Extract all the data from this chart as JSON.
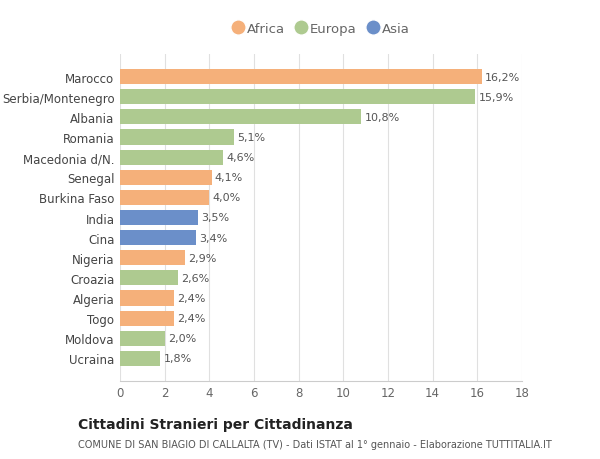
{
  "categories": [
    "Ucraina",
    "Moldova",
    "Togo",
    "Algeria",
    "Croazia",
    "Nigeria",
    "Cina",
    "India",
    "Burkina Faso",
    "Senegal",
    "Macedonia d/N.",
    "Romania",
    "Albania",
    "Serbia/Montenegro",
    "Marocco"
  ],
  "values": [
    1.8,
    2.0,
    2.4,
    2.4,
    2.6,
    2.9,
    3.4,
    3.5,
    4.0,
    4.1,
    4.6,
    5.1,
    10.8,
    15.9,
    16.2
  ],
  "labels": [
    "1,8%",
    "2,0%",
    "2,4%",
    "2,4%",
    "2,6%",
    "2,9%",
    "3,4%",
    "3,5%",
    "4,0%",
    "4,1%",
    "4,6%",
    "5,1%",
    "10,8%",
    "15,9%",
    "16,2%"
  ],
  "continents": [
    "Europa",
    "Europa",
    "Africa",
    "Africa",
    "Europa",
    "Africa",
    "Asia",
    "Asia",
    "Africa",
    "Africa",
    "Europa",
    "Europa",
    "Europa",
    "Europa",
    "Africa"
  ],
  "color_map": {
    "Africa": "#F5B07A",
    "Europa": "#AECA90",
    "Asia": "#6B8FC9"
  },
  "xlim": [
    0,
    18
  ],
  "xticks": [
    0,
    2,
    4,
    6,
    8,
    10,
    12,
    14,
    16,
    18
  ],
  "title1": "Cittadini Stranieri per Cittadinanza",
  "title2": "COMUNE DI SAN BIAGIO DI CALLALTA (TV) - Dati ISTAT al 1° gennaio - Elaborazione TUTTITALIA.IT",
  "background_color": "#ffffff",
  "bar_height": 0.75,
  "grid_color": "#e0e0e0",
  "label_color": "#555555",
  "ytick_color": "#444444"
}
